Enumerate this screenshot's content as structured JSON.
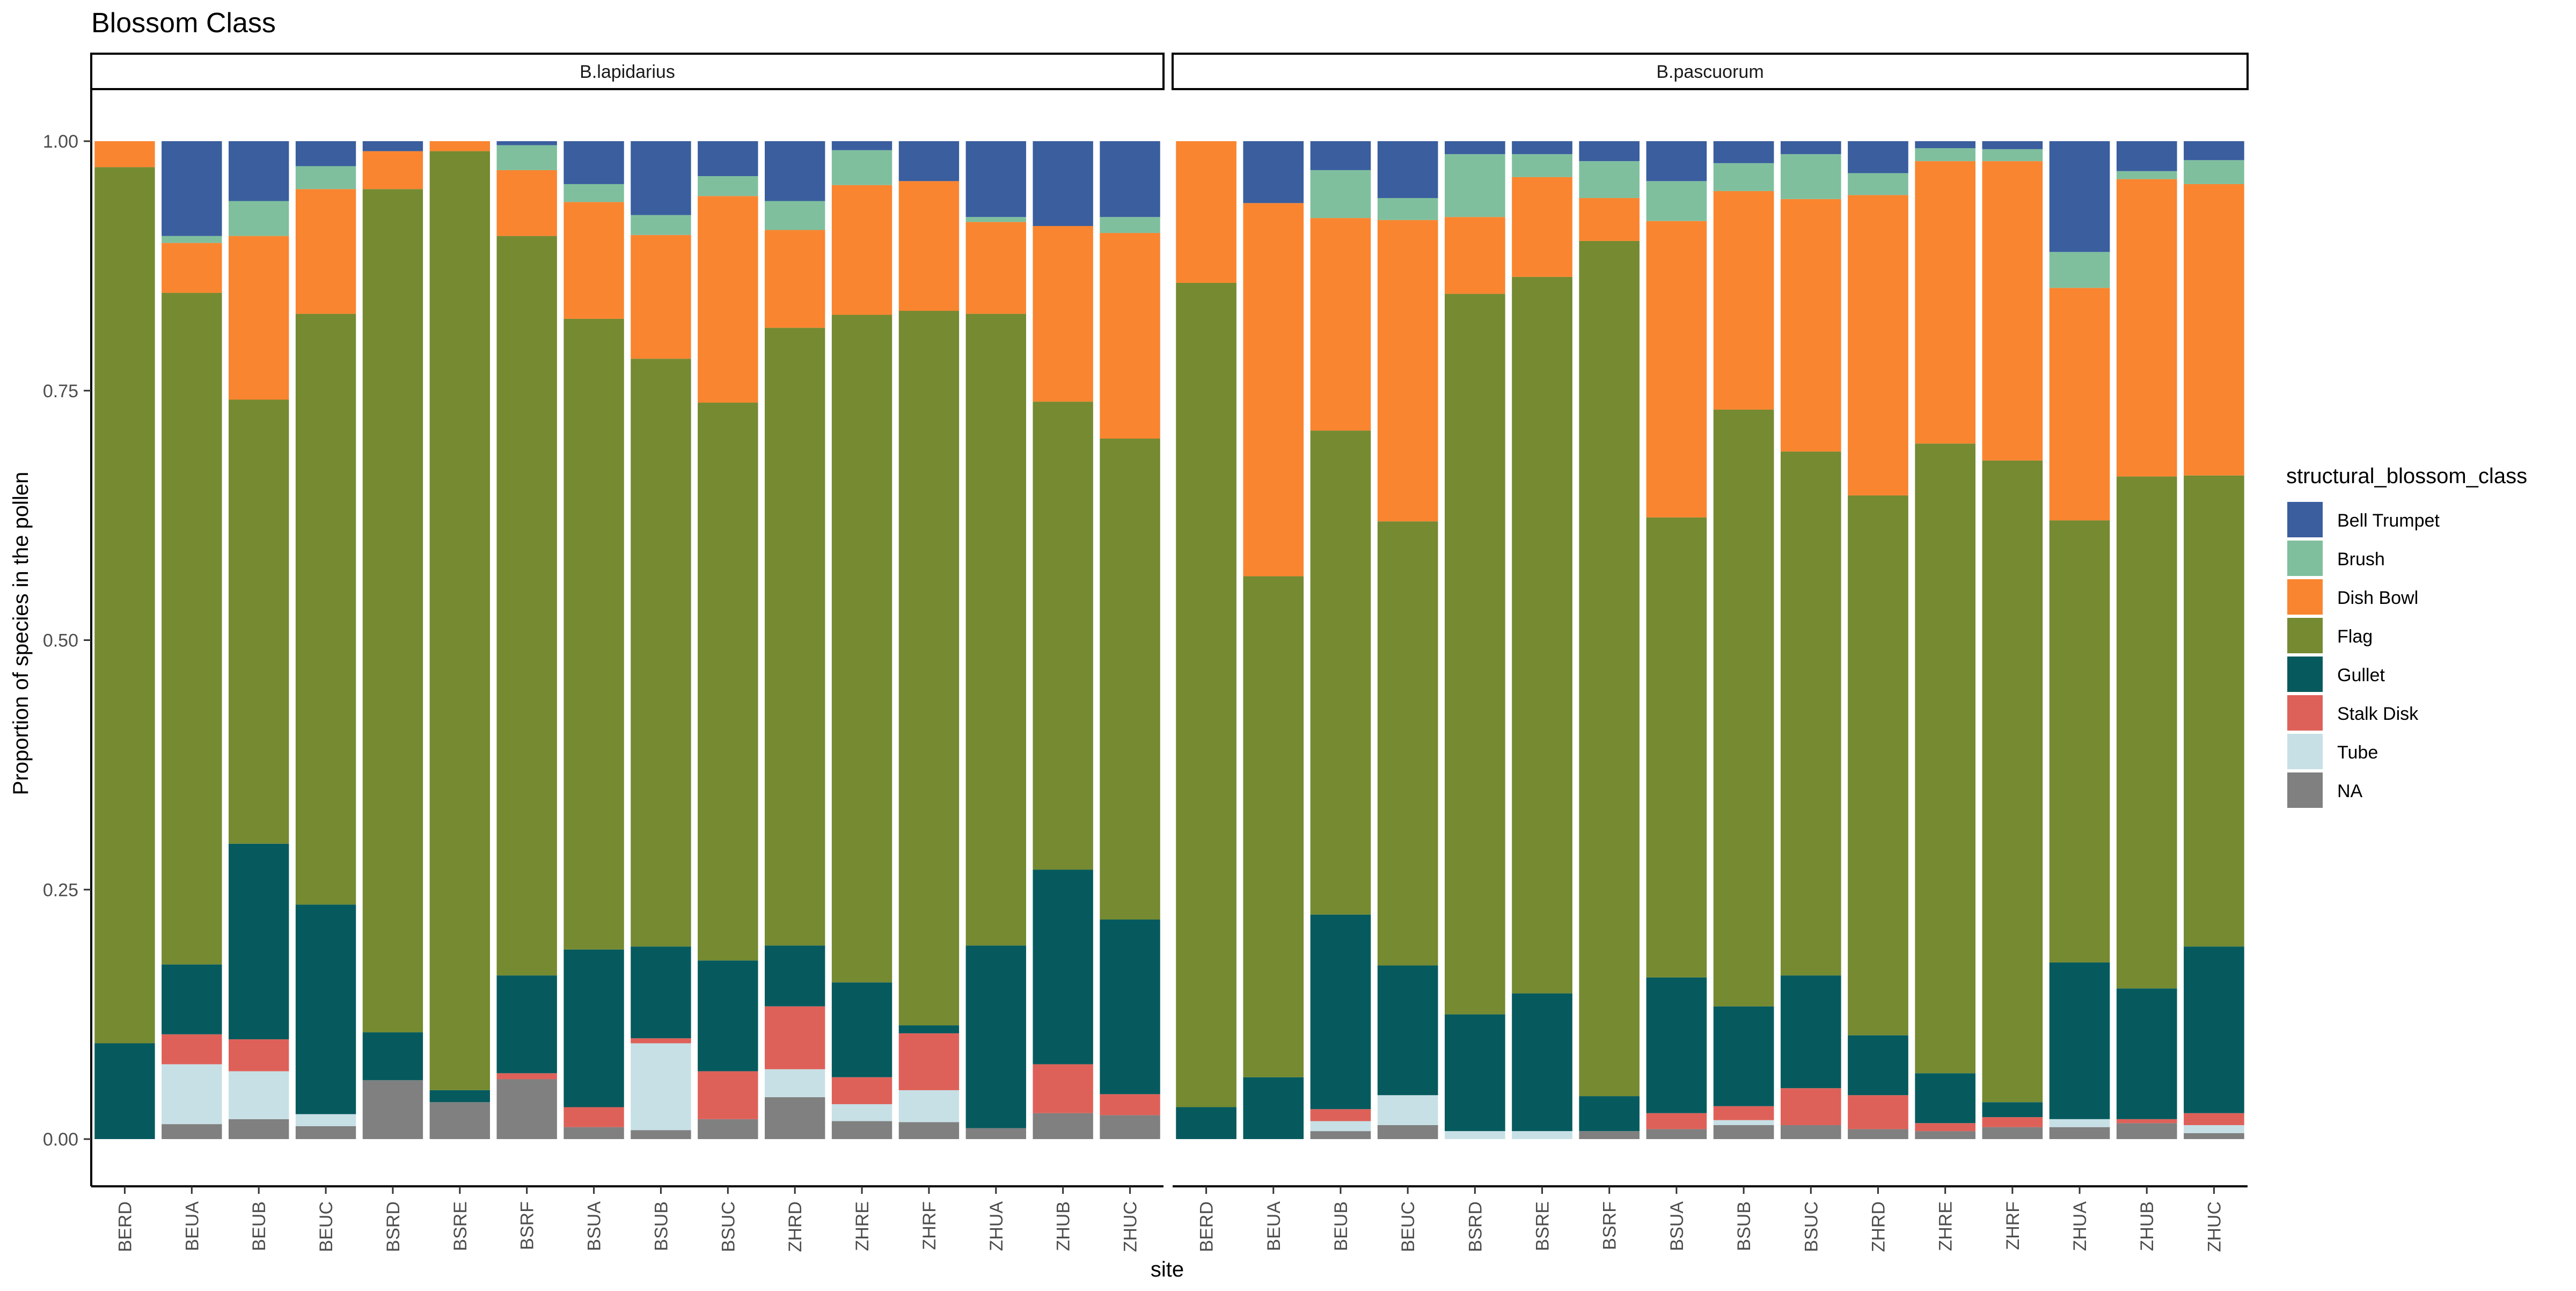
{
  "chart_data": {
    "type": "bar",
    "stacked": true,
    "title": "Blossom Class",
    "xlabel": "site",
    "ylabel": "Proportion of species in the pollen",
    "ylim": [
      0,
      1
    ],
    "yticks": [
      "0.00",
      "0.25",
      "0.50",
      "0.75",
      "1.00"
    ],
    "legend": {
      "title": "structural_blossom_class",
      "position": "right",
      "entries": [
        "Bell Trumpet",
        "Brush",
        "Dish Bowl",
        "Flag",
        "Gullet",
        "Stalk Disk",
        "Tube",
        "NA"
      ]
    },
    "colors": {
      "Bell Trumpet": "#3A5E9E",
      "Brush": "#7FBF9E",
      "Dish Bowl": "#F98530",
      "Flag": "#758A31",
      "Gullet": "#065A5E",
      "Stalk Disk": "#DE6159",
      "Tube": "#C7E0E6",
      "NA": "#808080"
    },
    "stack_order_bottom_to_top": [
      "NA",
      "Tube",
      "Stalk Disk",
      "Gullet",
      "Flag",
      "Dish Bowl",
      "Brush",
      "Bell Trumpet"
    ],
    "categories": [
      "BERD",
      "BEUA",
      "BEUB",
      "BEUC",
      "BSRD",
      "BSRE",
      "BSRF",
      "BSUA",
      "BSUB",
      "BSUC",
      "ZHRD",
      "ZHRE",
      "ZHRF",
      "ZHUA",
      "ZHUB",
      "ZHUC"
    ],
    "facets": [
      {
        "label": "B.lapidarius",
        "series": [
          {
            "name": "NA",
            "values": [
              0.0,
              0.015,
              0.02,
              0.013,
              0.059,
              0.037,
              0.06,
              0.012,
              0.009,
              0.02,
              0.042,
              0.018,
              0.017,
              0.011,
              0.026,
              0.024
            ]
          },
          {
            "name": "Tube",
            "values": [
              0.0,
              0.06,
              0.048,
              0.012,
              0.0,
              0.0,
              0.0,
              0.0,
              0.087,
              0.0,
              0.028,
              0.017,
              0.032,
              0.0,
              0.0,
              0.0
            ]
          },
          {
            "name": "Stalk Disk",
            "values": [
              0.0,
              0.03,
              0.032,
              0.0,
              0.0,
              0.0,
              0.006,
              0.02,
              0.005,
              0.048,
              0.063,
              0.027,
              0.057,
              0.0,
              0.049,
              0.021
            ]
          },
          {
            "name": "Gullet",
            "values": [
              0.096,
              0.07,
              0.196,
              0.21,
              0.048,
              0.012,
              0.098,
              0.158,
              0.092,
              0.111,
              0.061,
              0.095,
              0.008,
              0.183,
              0.195,
              0.175
            ]
          },
          {
            "name": "Flag",
            "values": [
              0.878,
              0.673,
              0.445,
              0.592,
              0.845,
              0.941,
              0.741,
              0.632,
              0.589,
              0.559,
              0.619,
              0.669,
              0.716,
              0.633,
              0.469,
              0.482
            ]
          },
          {
            "name": "Dish Bowl",
            "values": [
              0.026,
              0.05,
              0.164,
              0.125,
              0.038,
              0.01,
              0.066,
              0.117,
              0.124,
              0.207,
              0.098,
              0.13,
              0.13,
              0.092,
              0.176,
              0.206
            ]
          },
          {
            "name": "Brush",
            "values": [
              0.0,
              0.007,
              0.035,
              0.023,
              0.0,
              0.0,
              0.025,
              0.018,
              0.02,
              0.02,
              0.029,
              0.035,
              0.0,
              0.005,
              0.0,
              0.016
            ]
          },
          {
            "name": "Bell Trumpet",
            "values": [
              0.0,
              0.095,
              0.06,
              0.025,
              0.01,
              0.0,
              0.004,
              0.043,
              0.074,
              0.035,
              0.06,
              0.009,
              0.04,
              0.076,
              0.085,
              0.076
            ]
          }
        ]
      },
      {
        "label": "B.pascuorum",
        "series": [
          {
            "name": "NA",
            "values": [
              0.0,
              0.0,
              0.008,
              0.014,
              0.0,
              0.0,
              0.008,
              0.01,
              0.014,
              0.014,
              0.01,
              0.008,
              0.012,
              0.012,
              0.016,
              0.006
            ]
          },
          {
            "name": "Tube",
            "values": [
              0.0,
              0.0,
              0.01,
              0.03,
              0.008,
              0.008,
              0.0,
              0.0,
              0.005,
              0.0,
              0.0,
              0.0,
              0.0,
              0.008,
              0.0,
              0.008
            ]
          },
          {
            "name": "Stalk Disk",
            "values": [
              0.0,
              0.0,
              0.012,
              0.0,
              0.0,
              0.0,
              0.0,
              0.016,
              0.014,
              0.037,
              0.034,
              0.008,
              0.01,
              0.0,
              0.004,
              0.012
            ]
          },
          {
            "name": "Gullet",
            "values": [
              0.032,
              0.062,
              0.195,
              0.13,
              0.117,
              0.138,
              0.035,
              0.136,
              0.1,
              0.113,
              0.06,
              0.05,
              0.015,
              0.157,
              0.131,
              0.167
            ]
          },
          {
            "name": "Flag",
            "values": [
              0.826,
              0.502,
              0.485,
              0.445,
              0.722,
              0.718,
              0.857,
              0.461,
              0.598,
              0.525,
              0.541,
              0.631,
              0.643,
              0.443,
              0.513,
              0.472
            ]
          },
          {
            "name": "Dish Bowl",
            "values": [
              0.142,
              0.374,
              0.213,
              0.302,
              0.077,
              0.1,
              0.043,
              0.297,
              0.219,
              0.253,
              0.301,
              0.283,
              0.3,
              0.233,
              0.298,
              0.292
            ]
          },
          {
            "name": "Brush",
            "values": [
              0.0,
              0.0,
              0.048,
              0.022,
              0.063,
              0.023,
              0.037,
              0.04,
              0.028,
              0.045,
              0.022,
              0.013,
              0.012,
              0.036,
              0.008,
              0.024
            ]
          },
          {
            "name": "Bell Trumpet",
            "values": [
              0.0,
              0.062,
              0.029,
              0.057,
              0.013,
              0.013,
              0.02,
              0.04,
              0.022,
              0.013,
              0.032,
              0.007,
              0.008,
              0.111,
              0.03,
              0.019
            ]
          }
        ]
      }
    ]
  }
}
